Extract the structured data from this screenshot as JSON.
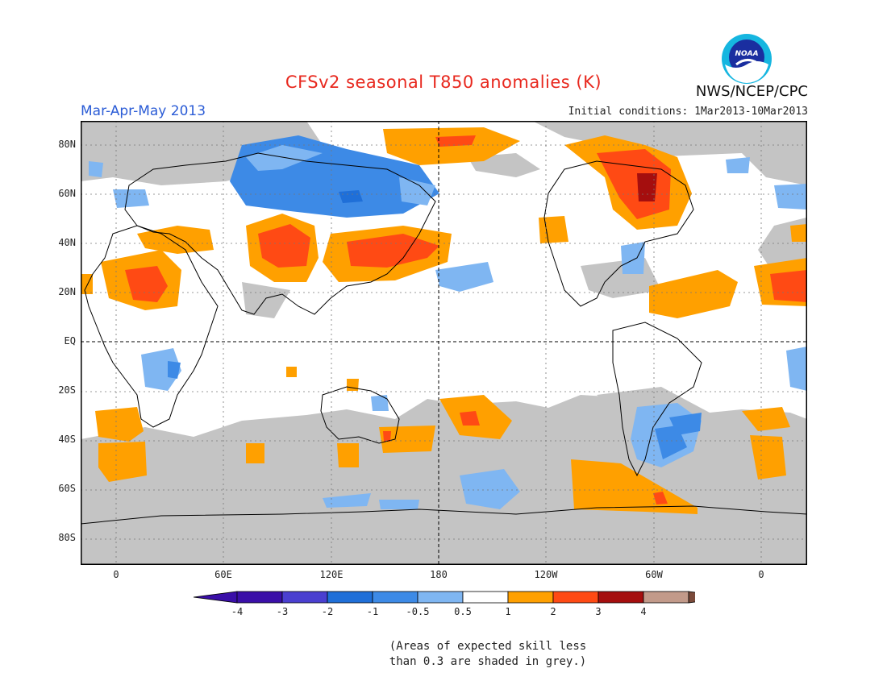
{
  "header": {
    "title": "CFSv2 seasonal T850 anomalies (K)",
    "subtitle": "Mar-Apr-May 2013",
    "initial_conditions": "Initial conditions: 1Mar2013-10Mar2013",
    "agency": "NWS/NCEP/CPC",
    "logo_text": "NOAA"
  },
  "map": {
    "lat_labels": [
      "80N",
      "60N",
      "40N",
      "20N",
      "EQ",
      "20S",
      "40S",
      "60S",
      "80S"
    ],
    "lon_labels": [
      "0",
      "60E",
      "120E",
      "180",
      "120W",
      "60W",
      "0"
    ]
  },
  "colorbar": {
    "labels": [
      "-4",
      "-3",
      "-2",
      "-1",
      "-0.5",
      "0.5",
      "1",
      "2",
      "3",
      "4"
    ],
    "colors": [
      "#3a0fa8",
      "#4a3fd0",
      "#1f6fd8",
      "#3d8ae6",
      "#7fb6f2",
      "#ffffff",
      "#ffa000",
      "#ff4a14",
      "#a50e0e",
      "#c29a8a"
    ],
    "end_low": "#3a0fa8",
    "end_high": "#7a4a3a"
  },
  "note": {
    "line1": "(Areas of expected skill less",
    "line2": "than 0.3 are shaded in grey.)"
  },
  "colors": {
    "skill_grey": "#c4c4c4",
    "coast": "#000000"
  }
}
